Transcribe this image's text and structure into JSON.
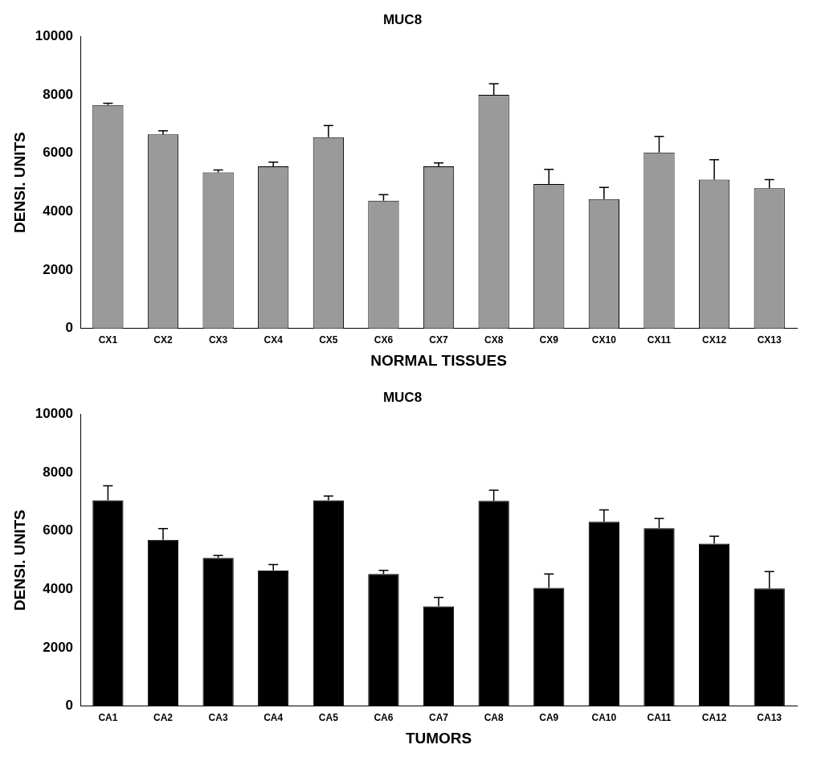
{
  "chart_data": [
    {
      "type": "bar",
      "title": "MUC8",
      "xlabel": "NORMAL TISSUES",
      "ylabel": "DENSI. UNITS",
      "categories": [
        "CX1",
        "CX2",
        "CX3",
        "CX4",
        "CX5",
        "CX6",
        "CX7",
        "CX8",
        "CX9",
        "CX10",
        "CX11",
        "CX12",
        "CX13"
      ],
      "values": [
        7650,
        6650,
        5350,
        5550,
        6550,
        4380,
        5550,
        8000,
        4950,
        4430,
        6030,
        5100,
        4800
      ],
      "errors": [
        [
          7650,
          7710
        ],
        [
          6650,
          6770
        ],
        [
          5350,
          5430
        ],
        [
          5550,
          5700
        ],
        [
          6550,
          6950
        ],
        [
          4380,
          4580
        ],
        [
          5550,
          5670
        ],
        [
          8000,
          8380
        ],
        [
          4950,
          5450
        ],
        [
          4430,
          4830
        ],
        [
          6030,
          6580
        ],
        [
          5100,
          5780
        ],
        [
          4800,
          5100
        ]
      ],
      "color": "#9a9a9a",
      "ylim": [
        0,
        10000
      ],
      "yticks": [
        0,
        2000,
        4000,
        6000,
        8000,
        10000
      ],
      "grid": false,
      "legend": false
    },
    {
      "type": "bar",
      "title": "MUC8",
      "xlabel": "TUMORS",
      "ylabel": "DENSI. UNITS",
      "categories": [
        "CA1",
        "CA2",
        "CA3",
        "CA4",
        "CA5",
        "CA6",
        "CA7",
        "CA8",
        "CA9",
        "CA10",
        "CA11",
        "CA12",
        "CA13"
      ],
      "values": [
        7050,
        5700,
        5080,
        4650,
        7050,
        4530,
        3420,
        7030,
        4050,
        6320,
        6100,
        5570,
        4030
      ],
      "errors": [
        [
          7050,
          7550
        ],
        [
          5700,
          6080
        ],
        [
          5080,
          5160
        ],
        [
          4650,
          4850
        ],
        [
          7050,
          7200
        ],
        [
          4530,
          4650
        ],
        [
          3420,
          3720
        ],
        [
          7030,
          7400
        ],
        [
          4050,
          4530
        ],
        [
          6320,
          6720
        ],
        [
          6100,
          6430
        ],
        [
          5570,
          5820
        ],
        [
          4030,
          4610
        ]
      ],
      "color": "#000000",
      "ylim": [
        0,
        10000
      ],
      "yticks": [
        0,
        2000,
        4000,
        6000,
        8000,
        10000
      ],
      "grid": false,
      "legend": false
    }
  ]
}
